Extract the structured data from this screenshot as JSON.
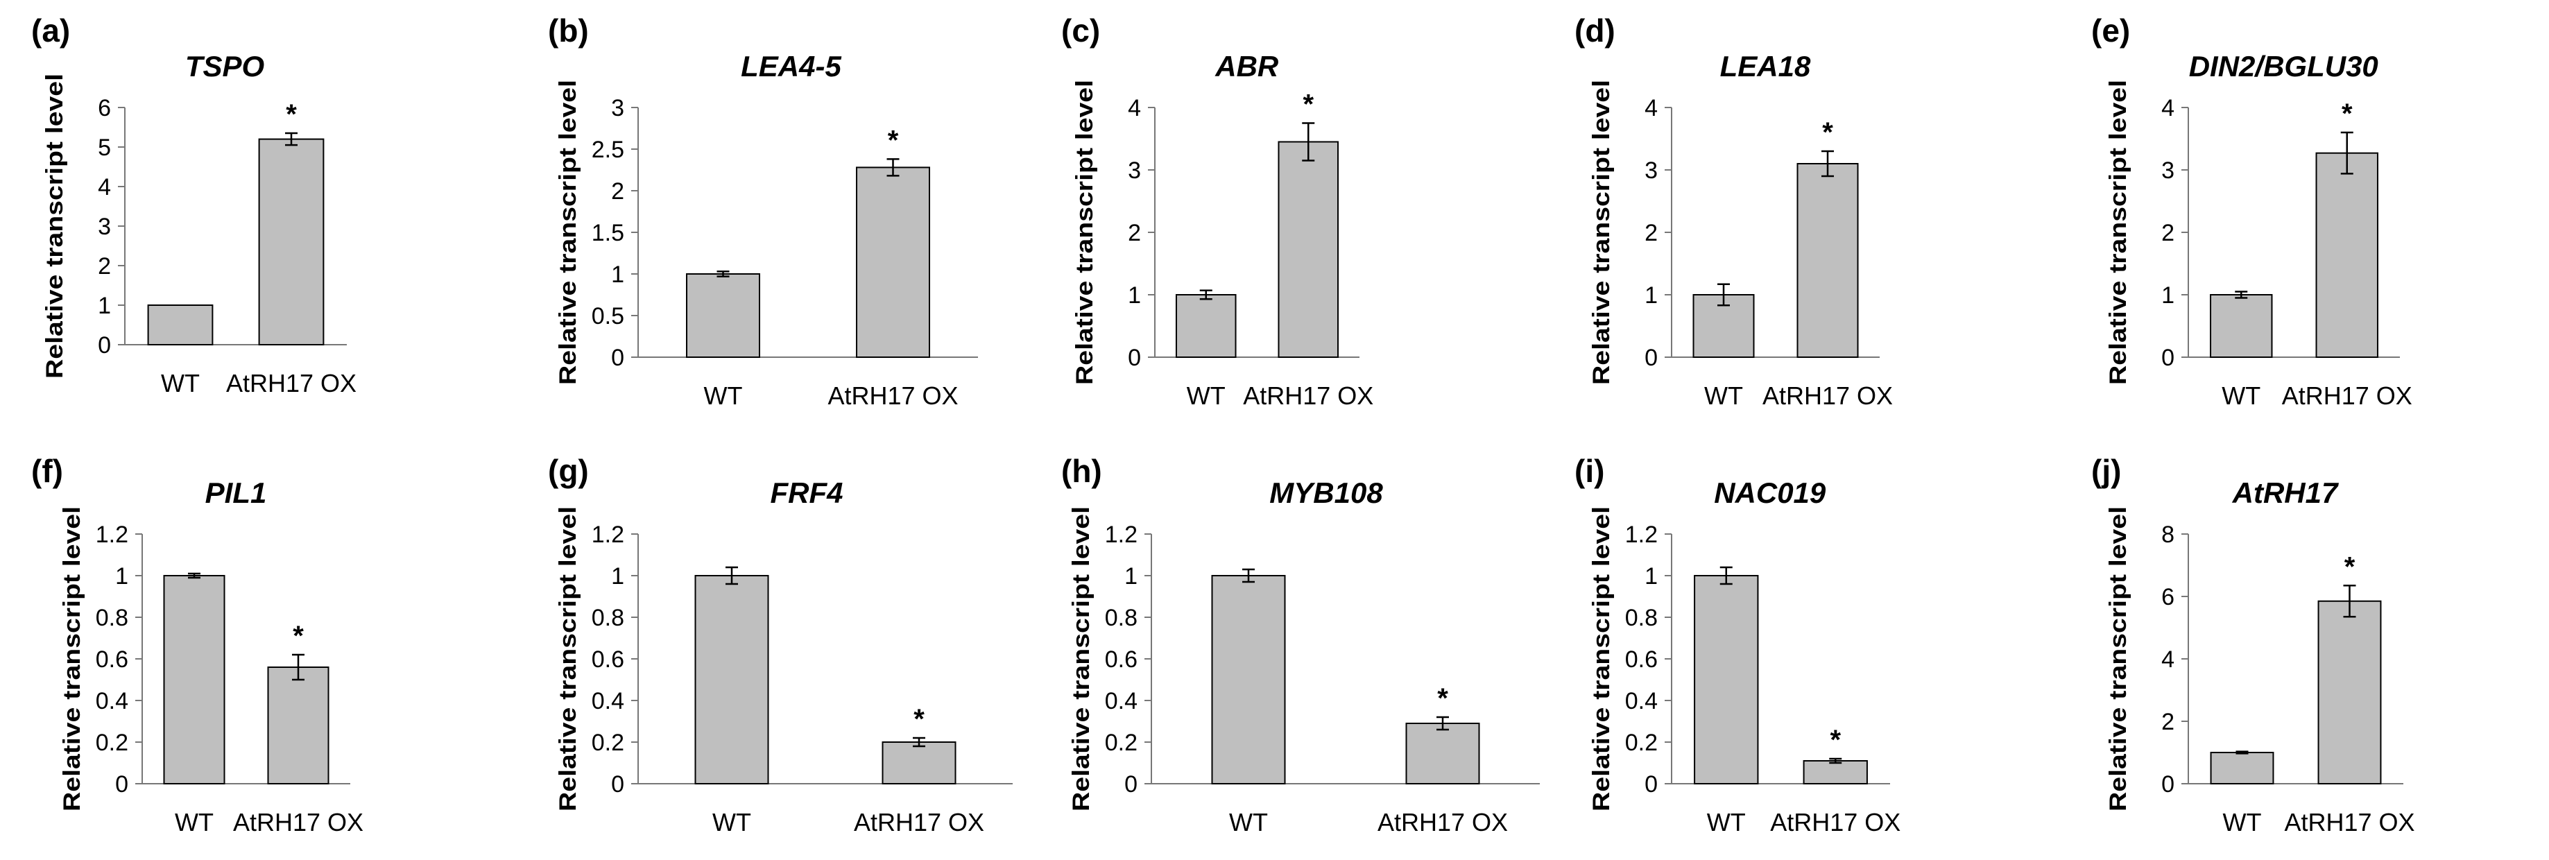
{
  "chart_data": [
    {
      "panel": "(a)",
      "title": "TSPO",
      "type": "bar",
      "ylabel": "Relative transcript level",
      "categories": [
        "WT",
        "AtRH17 OX"
      ],
      "values": [
        1.0,
        5.2
      ],
      "errors": [
        0.0,
        0.15
      ],
      "significant": [
        false,
        true
      ],
      "ylim": [
        0,
        6
      ],
      "yticks": [
        "0",
        "1",
        "2",
        "3",
        "4",
        "5",
        "6"
      ]
    },
    {
      "panel": "(b)",
      "title": "LEA4-5",
      "type": "bar",
      "ylabel": "Relative transcript level",
      "categories": [
        "WT",
        "AtRH17 OX"
      ],
      "values": [
        1.0,
        2.28
      ],
      "errors": [
        0.03,
        0.1
      ],
      "significant": [
        false,
        true
      ],
      "ylim": [
        0,
        3
      ],
      "yticks": [
        "0",
        "0.5",
        "1",
        "1.5",
        "2",
        "2.5",
        "3"
      ]
    },
    {
      "panel": "(c)",
      "title": "ABR",
      "type": "bar",
      "ylabel": "Relative transcript level",
      "categories": [
        "WT",
        "AtRH17 OX"
      ],
      "values": [
        1.0,
        3.45
      ],
      "errors": [
        0.07,
        0.3
      ],
      "significant": [
        false,
        true
      ],
      "ylim": [
        0,
        4
      ],
      "yticks": [
        "0",
        "1",
        "2",
        "3",
        "4"
      ]
    },
    {
      "panel": "(d)",
      "title": "LEA18",
      "type": "bar",
      "ylabel": "Relative transcript level",
      "categories": [
        "WT",
        "AtRH17 OX"
      ],
      "values": [
        1.0,
        3.1
      ],
      "errors": [
        0.17,
        0.2
      ],
      "significant": [
        false,
        true
      ],
      "ylim": [
        0,
        4
      ],
      "yticks": [
        "0",
        "1",
        "2",
        "3",
        "4"
      ]
    },
    {
      "panel": "(e)",
      "title": "DIN2/BGLU30",
      "type": "bar",
      "ylabel": "Relative transcript level",
      "categories": [
        "WT",
        "AtRH17 OX"
      ],
      "values": [
        1.0,
        3.27
      ],
      "errors": [
        0.05,
        0.33
      ],
      "significant": [
        false,
        true
      ],
      "ylim": [
        0,
        4
      ],
      "yticks": [
        "0",
        "1",
        "2",
        "3",
        "4"
      ]
    },
    {
      "panel": "(f)",
      "title": "PIL1",
      "type": "bar",
      "ylabel": "Relative transcript level",
      "categories": [
        "WT",
        "AtRH17 OX"
      ],
      "values": [
        1.0,
        0.56
      ],
      "errors": [
        0.01,
        0.06
      ],
      "significant": [
        false,
        true
      ],
      "ylim": [
        0,
        1.2
      ],
      "yticks": [
        "0",
        "0.2",
        "0.4",
        "0.6",
        "0.8",
        "1",
        "1.2"
      ]
    },
    {
      "panel": "(g)",
      "title": "FRF4",
      "type": "bar",
      "ylabel": "Relative transcript level",
      "categories": [
        "WT",
        "AtRH17 OX"
      ],
      "values": [
        1.0,
        0.2
      ],
      "errors": [
        0.04,
        0.02
      ],
      "significant": [
        false,
        true
      ],
      "ylim": [
        0,
        1.2
      ],
      "yticks": [
        "0",
        "0.2",
        "0.4",
        "0.6",
        "0.8",
        "1",
        "1.2"
      ]
    },
    {
      "panel": "(h)",
      "title": "MYB108",
      "type": "bar",
      "ylabel": "Relative transcript level",
      "categories": [
        "WT",
        "AtRH17 OX"
      ],
      "values": [
        1.0,
        0.29
      ],
      "errors": [
        0.03,
        0.03
      ],
      "significant": [
        false,
        true
      ],
      "ylim": [
        0,
        1.2
      ],
      "yticks": [
        "0",
        "0.2",
        "0.4",
        "0.6",
        "0.8",
        "1",
        "1.2"
      ]
    },
    {
      "panel": "(i)",
      "title": "NAC019",
      "type": "bar",
      "ylabel": "Relative transcript level",
      "categories": [
        "WT",
        "AtRH17 OX"
      ],
      "values": [
        1.0,
        0.11
      ],
      "errors": [
        0.04,
        0.01
      ],
      "significant": [
        false,
        true
      ],
      "ylim": [
        0,
        1.2
      ],
      "yticks": [
        "0",
        "0.2",
        "0.4",
        "0.6",
        "0.8",
        "1",
        "1.2"
      ]
    },
    {
      "panel": "(j)",
      "title": "AtRH17",
      "type": "bar",
      "ylabel": "Relative transcript level",
      "categories": [
        "WT",
        "AtRH17 OX"
      ],
      "values": [
        1.0,
        5.85
      ],
      "errors": [
        0.03,
        0.5
      ],
      "significant": [
        false,
        true
      ],
      "ylim": [
        0,
        8
      ],
      "yticks": [
        "0",
        "2",
        "4",
        "6",
        "8"
      ]
    }
  ],
  "significance_marker": "*",
  "colors": {
    "bar": "#bfbfbf",
    "stroke": "#000000",
    "axis": "#777777",
    "text": "#000000"
  }
}
